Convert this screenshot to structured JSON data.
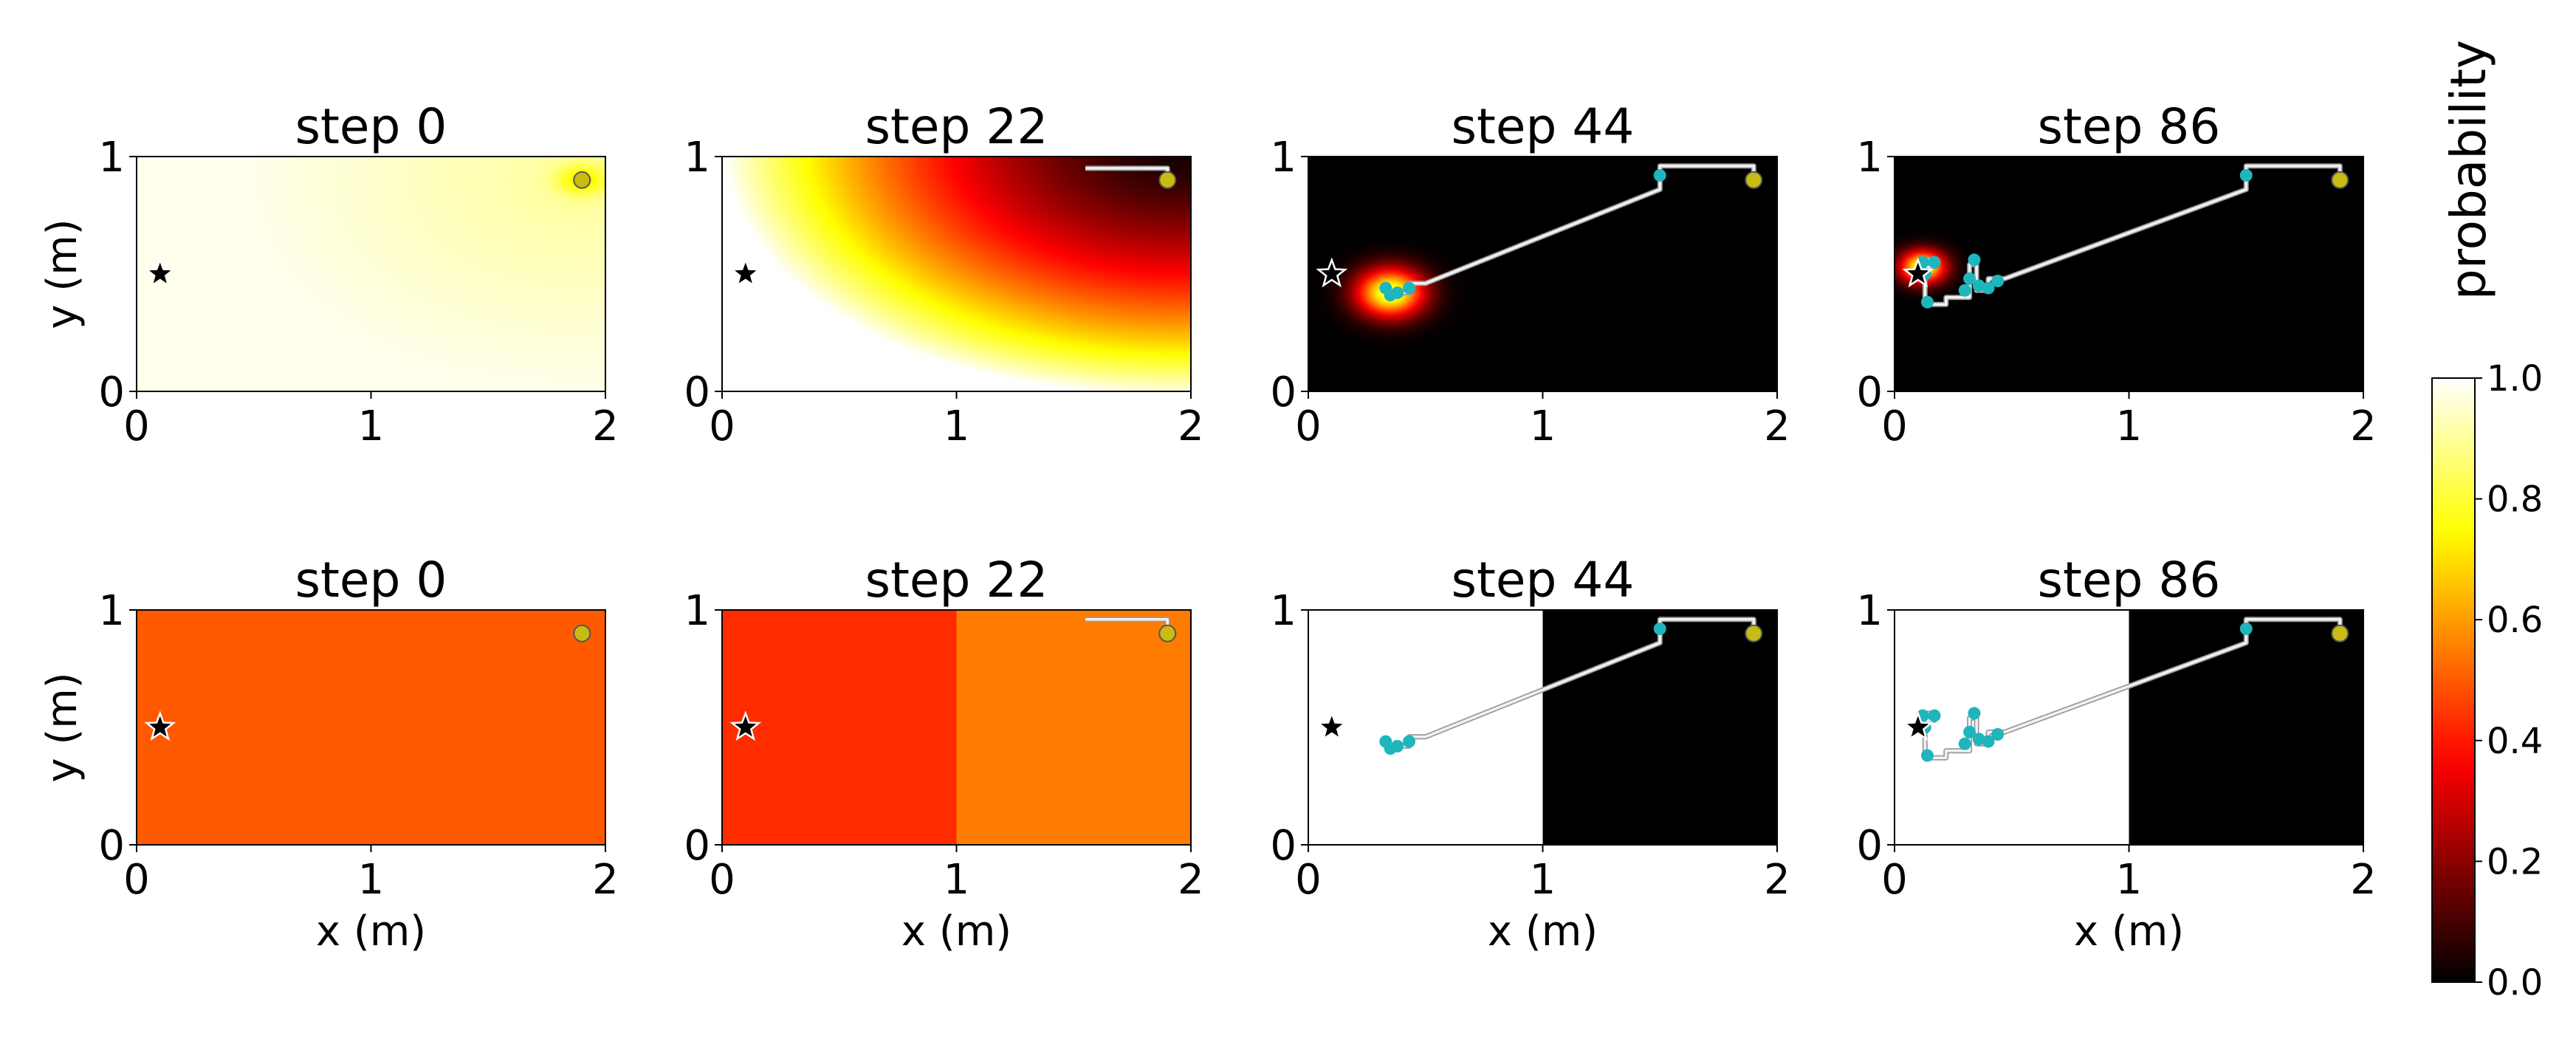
{
  "chart_data": {
    "type": "heatmap",
    "colormap": "hot",
    "grid": false,
    "xlim": [
      0,
      2
    ],
    "ylim": [
      0,
      1
    ],
    "xticks": [
      "0",
      "1",
      "2"
    ],
    "yticks": [
      "0",
      "1"
    ],
    "xlabel": "x (m)",
    "ylabel": "y (m)",
    "star": [
      0.1,
      0.5
    ],
    "goal": [
      1.9,
      0.9
    ],
    "colorbar": {
      "label": "probability",
      "range": [
        0.0,
        1.0
      ],
      "ticks": [
        "0.0",
        "0.2",
        "0.4",
        "0.6",
        "0.8",
        "1.0"
      ]
    },
    "rows": [
      {
        "panels": [
          {
            "title": "step 0",
            "field": "top_step0",
            "path": [],
            "markers": []
          },
          {
            "title": "step 22",
            "field": "top_step22",
            "path": [
              [
                1.9,
                0.9
              ],
              [
                1.9,
                0.95
              ],
              [
                1.55,
                0.95
              ]
            ],
            "markers": []
          },
          {
            "title": "step 44",
            "field": "blob",
            "blob": {
              "center": [
                0.35,
                0.42
              ],
              "radius": 0.15
            },
            "path": [
              [
                1.9,
                0.9
              ],
              [
                1.9,
                0.96
              ],
              [
                1.5,
                0.96
              ],
              [
                1.5,
                0.86
              ],
              [
                0.5,
                0.46
              ],
              [
                0.43,
                0.46
              ],
              [
                0.43,
                0.42
              ],
              [
                0.33,
                0.42
              ]
            ],
            "markers": [
              [
                1.5,
                0.92
              ],
              [
                0.43,
                0.44
              ],
              [
                0.38,
                0.42
              ],
              [
                0.35,
                0.41
              ],
              [
                0.33,
                0.44
              ]
            ]
          },
          {
            "title": "step 86",
            "field": "blob",
            "blob": {
              "center": [
                0.12,
                0.53
              ],
              "radius": 0.1
            },
            "path": [
              [
                1.9,
                0.9
              ],
              [
                1.9,
                0.96
              ],
              [
                1.5,
                0.96
              ],
              [
                1.5,
                0.86
              ],
              [
                0.47,
                0.48
              ],
              [
                0.4,
                0.48
              ],
              [
                0.4,
                0.43
              ],
              [
                0.35,
                0.43
              ],
              [
                0.35,
                0.54
              ],
              [
                0.32,
                0.54
              ],
              [
                0.32,
                0.4
              ],
              [
                0.22,
                0.4
              ],
              [
                0.22,
                0.37
              ],
              [
                0.13,
                0.37
              ],
              [
                0.13,
                0.53
              ],
              [
                0.17,
                0.53
              ],
              [
                0.17,
                0.56
              ],
              [
                0.13,
                0.56
              ]
            ],
            "markers": [
              [
                1.5,
                0.92
              ],
              [
                0.44,
                0.47
              ],
              [
                0.4,
                0.44
              ],
              [
                0.36,
                0.45
              ],
              [
                0.34,
                0.56
              ],
              [
                0.32,
                0.48
              ],
              [
                0.3,
                0.43
              ],
              [
                0.14,
                0.38
              ],
              [
                0.13,
                0.5
              ],
              [
                0.12,
                0.55
              ],
              [
                0.17,
                0.55
              ]
            ]
          }
        ]
      },
      {
        "panels": [
          {
            "title": "step 0",
            "field": "uniform",
            "value": 0.5,
            "path": [],
            "markers": []
          },
          {
            "title": "step 22",
            "field": "split",
            "left_value": 0.43,
            "right_value": 0.55,
            "split_x": 1.0,
            "path": [
              [
                1.9,
                0.9
              ],
              [
                1.9,
                0.96
              ],
              [
                1.55,
                0.96
              ]
            ],
            "markers": []
          },
          {
            "title": "step 44",
            "field": "split",
            "left_value": 1.0,
            "right_value": 0.0,
            "split_x": 1.0,
            "path": [
              [
                1.9,
                0.9
              ],
              [
                1.9,
                0.96
              ],
              [
                1.5,
                0.96
              ],
              [
                1.5,
                0.86
              ],
              [
                0.5,
                0.46
              ],
              [
                0.43,
                0.46
              ],
              [
                0.43,
                0.42
              ],
              [
                0.33,
                0.42
              ]
            ],
            "markers": [
              [
                1.5,
                0.92
              ],
              [
                0.43,
                0.44
              ],
              [
                0.38,
                0.42
              ],
              [
                0.35,
                0.41
              ],
              [
                0.33,
                0.44
              ]
            ]
          },
          {
            "title": "step 86",
            "field": "split",
            "left_value": 1.0,
            "right_value": 0.0,
            "split_x": 1.0,
            "path": [
              [
                1.9,
                0.9
              ],
              [
                1.9,
                0.96
              ],
              [
                1.5,
                0.96
              ],
              [
                1.5,
                0.86
              ],
              [
                0.47,
                0.48
              ],
              [
                0.4,
                0.48
              ],
              [
                0.4,
                0.43
              ],
              [
                0.35,
                0.43
              ],
              [
                0.35,
                0.54
              ],
              [
                0.32,
                0.54
              ],
              [
                0.32,
                0.4
              ],
              [
                0.22,
                0.4
              ],
              [
                0.22,
                0.37
              ],
              [
                0.13,
                0.37
              ],
              [
                0.13,
                0.53
              ],
              [
                0.17,
                0.53
              ],
              [
                0.17,
                0.56
              ],
              [
                0.13,
                0.56
              ]
            ],
            "markers": [
              [
                1.5,
                0.92
              ],
              [
                0.44,
                0.47
              ],
              [
                0.4,
                0.44
              ],
              [
                0.36,
                0.45
              ],
              [
                0.34,
                0.56
              ],
              [
                0.32,
                0.48
              ],
              [
                0.3,
                0.43
              ],
              [
                0.14,
                0.38
              ],
              [
                0.13,
                0.5
              ],
              [
                0.12,
                0.55
              ],
              [
                0.17,
                0.55
              ]
            ]
          }
        ]
      }
    ]
  }
}
